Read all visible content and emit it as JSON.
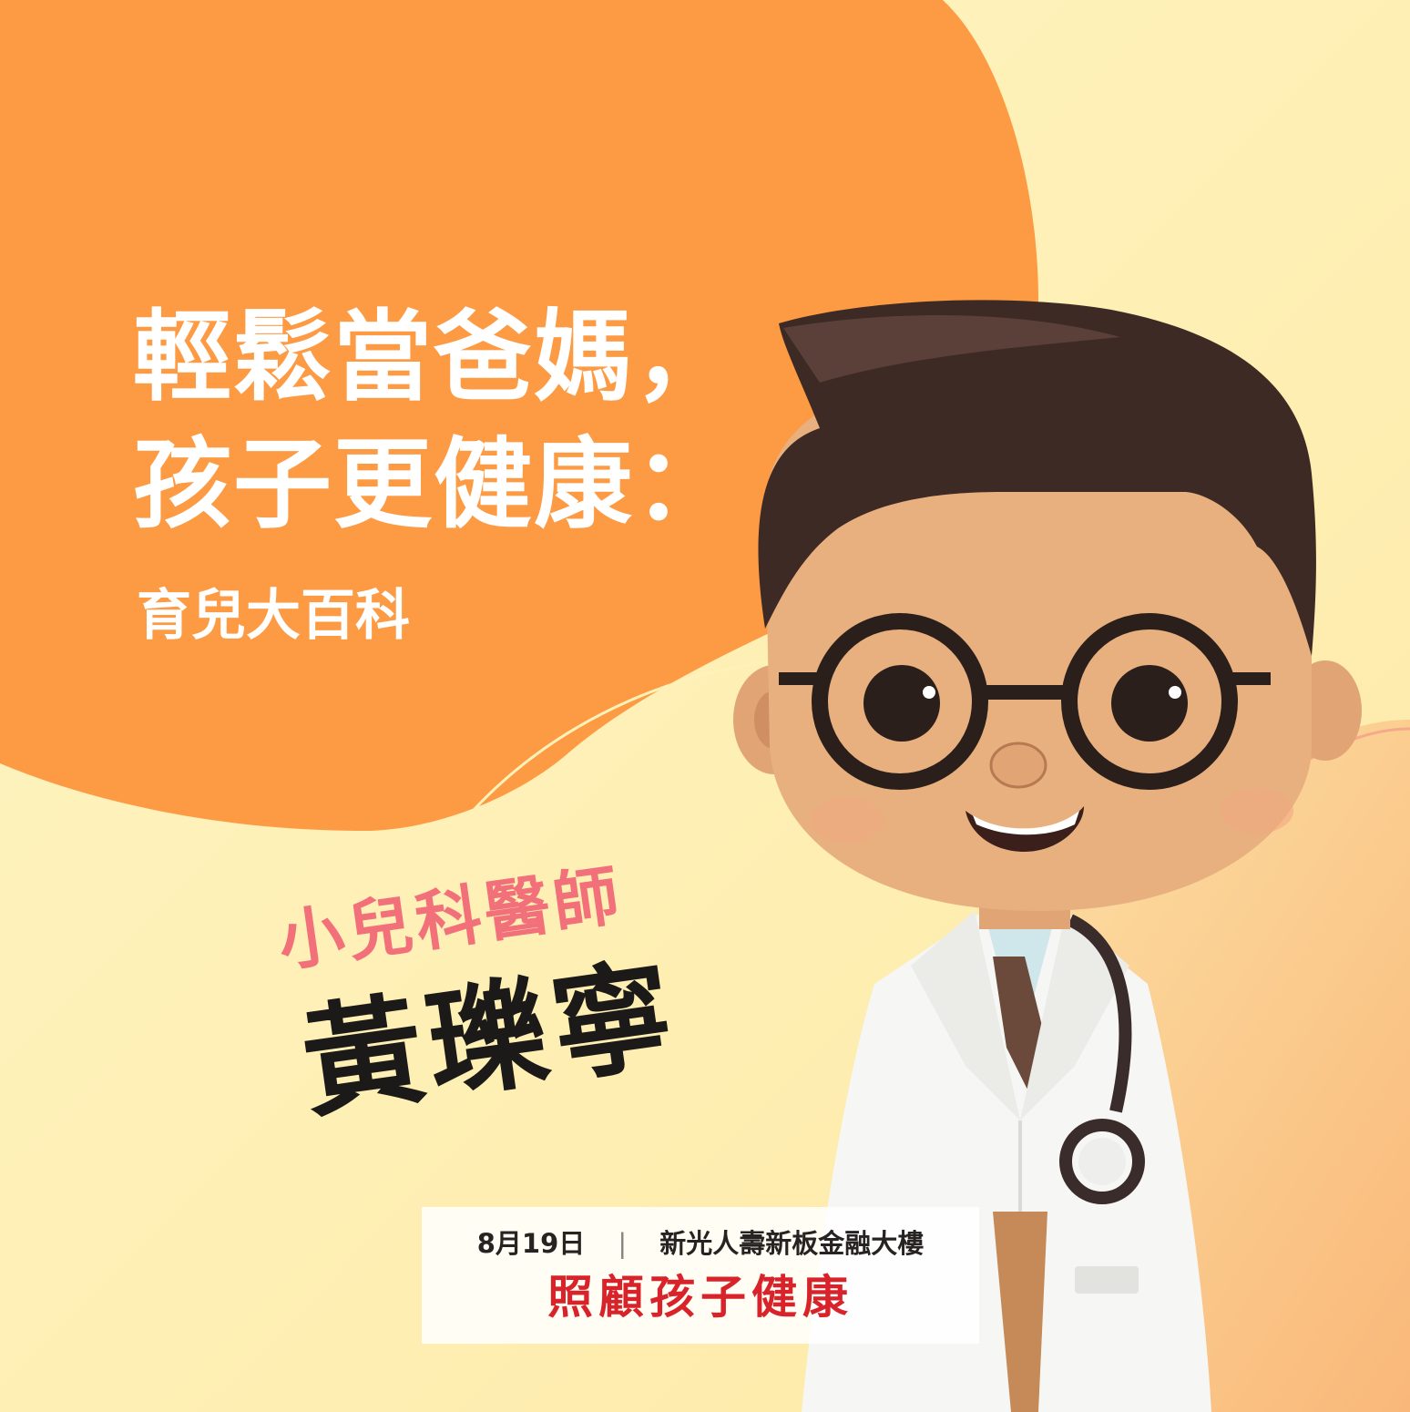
{
  "colors": {
    "orange_blob": "#fd9b44",
    "cream_background": "#fdf3bb",
    "peach_corner": "#fbc98b",
    "role_text": "#f2707a",
    "event_title": "#d8232a"
  },
  "headline": {
    "line1": "輕鬆當爸媽，",
    "line2": "孩子更健康："
  },
  "subtitle": "育兒大百科",
  "speaker": {
    "role": "小兒科醫師",
    "name": "黃瓅寧"
  },
  "event": {
    "date": "8月19日",
    "separator": "|",
    "venue": "新光人壽新板金融大樓",
    "title": "照顧孩子健康"
  },
  "illustration": {
    "subject": "cartoon-doctor-with-glasses-and-stethoscope"
  }
}
